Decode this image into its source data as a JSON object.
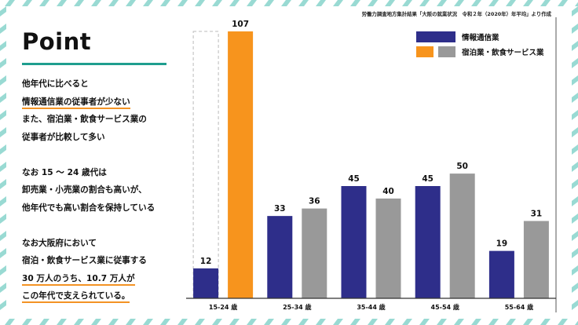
{
  "source_note": "労働力調査地方集計結果「大阪の就業状況　令和２年（2020年）年平均」より作成",
  "point": {
    "title": "Point",
    "paragraphs": [
      [
        {
          "text": "他年代に比べると",
          "highlight": false
        },
        {
          "text": "情報通信業の従事者が少ない",
          "highlight": true
        },
        {
          "text": "また、宿泊業・飲食サービス業の",
          "highlight": false
        },
        {
          "text": "従事者が比較して多い",
          "highlight": false
        }
      ],
      [
        {
          "text": "なお 15 ～ 24 歳代は",
          "highlight": false
        },
        {
          "text": "卸売業・小売業の割合も高いが、",
          "highlight": false
        },
        {
          "text": "他年代でも高い割合を保持している",
          "highlight": false
        }
      ],
      [
        {
          "text": "なお大阪府において",
          "highlight": false
        },
        {
          "text": "宿泊・飲食サービス業に従事する",
          "highlight": false
        },
        {
          "text": "30 万人のうち、10.7 万人が",
          "highlight": true
        },
        {
          "text": "この年代で支えられている。",
          "highlight": true
        }
      ]
    ]
  },
  "colors": {
    "info_comm": "#2e2e8a",
    "accommodation": "#999999",
    "accommodation_highlight": "#f7941d",
    "accent_teal": "#1f9e8f",
    "highlight_underline": "#f39324",
    "stripe_teal": "#7fd1c8"
  },
  "chart_data": {
    "type": "bar",
    "categories": [
      "15-24 歳",
      "25-34 歳",
      "35-44 歳",
      "45-54 歳",
      "55-64 歳"
    ],
    "series": [
      {
        "name": "情報通信業",
        "values": [
          12,
          33,
          45,
          45,
          19
        ]
      },
      {
        "name": "宿泊業・飲食サービス業",
        "values": [
          107,
          36,
          40,
          50,
          31
        ]
      }
    ],
    "ylim": [
      0,
      107
    ],
    "legend": "top-right",
    "notes": "15-24 歳: 情報通信業 bar drawn with dashed outline up to the 107 level; 宿泊業・飲食サービス業 bar highlighted in orange",
    "grid": false
  }
}
